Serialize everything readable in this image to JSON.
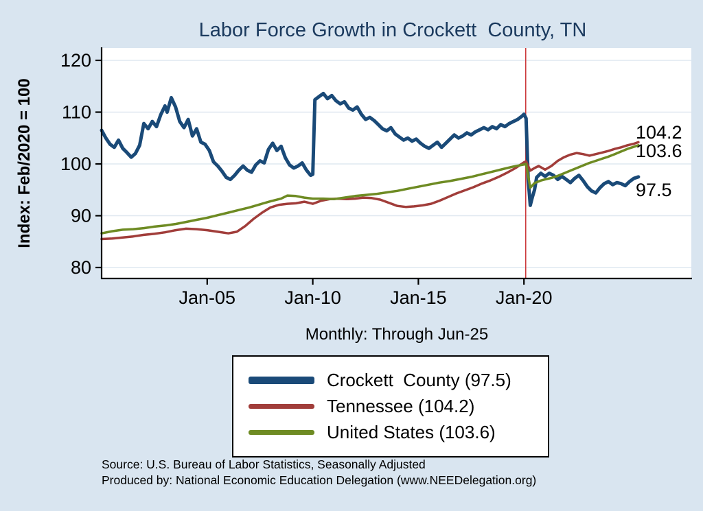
{
  "title": "Labor Force Growth in Crockett  County, TN",
  "y_axis_label": "Index: Feb/2020 = 100",
  "subtitle": "Monthly: Through Jun-25",
  "source_line1": "Source: U.S. Bureau of Labor Statistics, Seasonally Adjusted",
  "source_line2": "Produced by: National Economic Education Delegation (www.NEEDelegation.org)",
  "colors": {
    "background": "#d9e5f0",
    "title": "#1b3a5e",
    "grid": "#dfe8f0",
    "event_line": "#cc3a3c",
    "crockett": "#1a4a78",
    "tennessee": "#a13d3a",
    "united_states": "#6e8b23"
  },
  "chart_data": {
    "type": "line",
    "title": "Labor Force Growth in Crockett  County, TN",
    "xlabel": "",
    "ylabel": "Index: Feb/2020 = 100",
    "x_unit": "decimal_year",
    "x_range": [
      2000,
      2025.6
    ],
    "ylim": [
      78,
      122
    ],
    "grid": "horizontal",
    "legend_position": "below",
    "y_ticks": [
      80,
      90,
      100,
      110,
      120
    ],
    "x_ticks": [
      {
        "x": 2005,
        "label": "Jan-05"
      },
      {
        "x": 2010,
        "label": "Jan-10"
      },
      {
        "x": 2015,
        "label": "Jan-15"
      },
      {
        "x": 2020,
        "label": "Jan-20"
      }
    ],
    "event_line_x": 2020.083,
    "end_labels": [
      {
        "text": "104.2",
        "series": "Tennessee"
      },
      {
        "text": "103.6",
        "series": "United States"
      },
      {
        "text": "97.5",
        "series": "Crockett County"
      }
    ],
    "series": [
      {
        "name": "Crockett  County",
        "legend_label": "Crockett  County (97.5)",
        "last_value": 97.5,
        "color": "#1a4a78",
        "width": 5,
        "points": [
          [
            2000.0,
            106.5
          ],
          [
            2000.2,
            105.0
          ],
          [
            2000.4,
            103.8
          ],
          [
            2000.6,
            103.2
          ],
          [
            2000.8,
            104.6
          ],
          [
            2001.0,
            103.0
          ],
          [
            2001.2,
            102.2
          ],
          [
            2001.4,
            101.3
          ],
          [
            2001.6,
            102.0
          ],
          [
            2001.8,
            103.6
          ],
          [
            2002.0,
            107.8
          ],
          [
            2002.2,
            106.8
          ],
          [
            2002.4,
            108.2
          ],
          [
            2002.6,
            107.2
          ],
          [
            2002.8,
            109.5
          ],
          [
            2003.0,
            111.2
          ],
          [
            2003.1,
            110.0
          ],
          [
            2003.3,
            112.8
          ],
          [
            2003.5,
            111.0
          ],
          [
            2003.7,
            108.2
          ],
          [
            2003.9,
            107.0
          ],
          [
            2004.1,
            108.6
          ],
          [
            2004.3,
            105.4
          ],
          [
            2004.5,
            106.8
          ],
          [
            2004.7,
            104.2
          ],
          [
            2004.9,
            103.8
          ],
          [
            2005.1,
            102.6
          ],
          [
            2005.3,
            100.4
          ],
          [
            2005.5,
            99.6
          ],
          [
            2005.7,
            98.6
          ],
          [
            2005.9,
            97.4
          ],
          [
            2006.1,
            97.0
          ],
          [
            2006.3,
            97.8
          ],
          [
            2006.5,
            98.8
          ],
          [
            2006.7,
            99.6
          ],
          [
            2006.9,
            98.8
          ],
          [
            2007.1,
            98.4
          ],
          [
            2007.3,
            99.8
          ],
          [
            2007.5,
            100.6
          ],
          [
            2007.7,
            100.2
          ],
          [
            2007.9,
            102.8
          ],
          [
            2008.1,
            104.0
          ],
          [
            2008.3,
            102.6
          ],
          [
            2008.5,
            103.4
          ],
          [
            2008.7,
            101.2
          ],
          [
            2008.9,
            99.8
          ],
          [
            2009.1,
            99.2
          ],
          [
            2009.3,
            99.6
          ],
          [
            2009.5,
            100.2
          ],
          [
            2009.7,
            98.8
          ],
          [
            2009.9,
            97.8
          ],
          [
            2010.0,
            98.0
          ],
          [
            2010.1,
            112.4
          ],
          [
            2010.3,
            113.0
          ],
          [
            2010.5,
            113.6
          ],
          [
            2010.7,
            112.6
          ],
          [
            2010.9,
            113.2
          ],
          [
            2011.1,
            112.2
          ],
          [
            2011.3,
            111.6
          ],
          [
            2011.5,
            112.0
          ],
          [
            2011.7,
            110.8
          ],
          [
            2011.9,
            110.4
          ],
          [
            2012.1,
            111.0
          ],
          [
            2012.3,
            109.6
          ],
          [
            2012.5,
            108.6
          ],
          [
            2012.7,
            109.0
          ],
          [
            2012.9,
            108.4
          ],
          [
            2013.1,
            107.6
          ],
          [
            2013.3,
            106.8
          ],
          [
            2013.5,
            106.4
          ],
          [
            2013.7,
            107.0
          ],
          [
            2013.9,
            105.8
          ],
          [
            2014.1,
            105.2
          ],
          [
            2014.3,
            104.6
          ],
          [
            2014.5,
            105.0
          ],
          [
            2014.7,
            104.4
          ],
          [
            2014.9,
            104.8
          ],
          [
            2015.1,
            104.0
          ],
          [
            2015.3,
            103.4
          ],
          [
            2015.5,
            103.0
          ],
          [
            2015.7,
            103.6
          ],
          [
            2015.9,
            104.2
          ],
          [
            2016.1,
            103.2
          ],
          [
            2016.3,
            104.0
          ],
          [
            2016.5,
            104.8
          ],
          [
            2016.7,
            105.6
          ],
          [
            2016.9,
            105.0
          ],
          [
            2017.1,
            105.4
          ],
          [
            2017.3,
            106.0
          ],
          [
            2017.5,
            105.6
          ],
          [
            2017.7,
            106.2
          ],
          [
            2017.9,
            106.6
          ],
          [
            2018.1,
            107.0
          ],
          [
            2018.3,
            106.6
          ],
          [
            2018.5,
            107.2
          ],
          [
            2018.7,
            106.8
          ],
          [
            2018.9,
            107.6
          ],
          [
            2019.1,
            107.2
          ],
          [
            2019.3,
            107.8
          ],
          [
            2019.5,
            108.2
          ],
          [
            2019.7,
            108.6
          ],
          [
            2019.9,
            109.2
          ],
          [
            2020.0,
            109.6
          ],
          [
            2020.1,
            108.8
          ],
          [
            2020.2,
            97.0
          ],
          [
            2020.3,
            92.0
          ],
          [
            2020.4,
            93.6
          ],
          [
            2020.5,
            95.0
          ],
          [
            2020.6,
            97.4
          ],
          [
            2020.8,
            98.2
          ],
          [
            2021.0,
            97.6
          ],
          [
            2021.2,
            98.2
          ],
          [
            2021.4,
            97.8
          ],
          [
            2021.6,
            97.0
          ],
          [
            2021.8,
            97.6
          ],
          [
            2022.0,
            97.0
          ],
          [
            2022.2,
            96.4
          ],
          [
            2022.4,
            97.2
          ],
          [
            2022.6,
            97.8
          ],
          [
            2022.8,
            96.8
          ],
          [
            2023.0,
            95.6
          ],
          [
            2023.2,
            94.8
          ],
          [
            2023.4,
            94.4
          ],
          [
            2023.6,
            95.4
          ],
          [
            2023.8,
            96.2
          ],
          [
            2024.0,
            96.6
          ],
          [
            2024.2,
            96.0
          ],
          [
            2024.4,
            96.4
          ],
          [
            2024.6,
            96.2
          ],
          [
            2024.8,
            95.8
          ],
          [
            2025.0,
            96.6
          ],
          [
            2025.2,
            97.2
          ],
          [
            2025.42,
            97.5
          ]
        ]
      },
      {
        "name": "Tennessee",
        "legend_label": "Tennessee (104.2)",
        "last_value": 104.2,
        "color": "#a13d3a",
        "width": 3.5,
        "points": [
          [
            2000.0,
            85.5
          ],
          [
            2000.5,
            85.6
          ],
          [
            2001.0,
            85.8
          ],
          [
            2001.5,
            86.0
          ],
          [
            2002.0,
            86.3
          ],
          [
            2002.5,
            86.5
          ],
          [
            2003.0,
            86.8
          ],
          [
            2003.5,
            87.2
          ],
          [
            2004.0,
            87.5
          ],
          [
            2004.5,
            87.4
          ],
          [
            2005.0,
            87.2
          ],
          [
            2005.5,
            86.9
          ],
          [
            2006.0,
            86.6
          ],
          [
            2006.4,
            86.9
          ],
          [
            2006.8,
            88.0
          ],
          [
            2007.2,
            89.4
          ],
          [
            2007.6,
            90.6
          ],
          [
            2008.0,
            91.6
          ],
          [
            2008.4,
            92.1
          ],
          [
            2008.8,
            92.3
          ],
          [
            2009.2,
            92.4
          ],
          [
            2009.6,
            92.7
          ],
          [
            2010.0,
            92.3
          ],
          [
            2010.4,
            92.9
          ],
          [
            2010.8,
            93.2
          ],
          [
            2011.2,
            93.3
          ],
          [
            2011.6,
            93.2
          ],
          [
            2012.0,
            93.3
          ],
          [
            2012.4,
            93.5
          ],
          [
            2012.8,
            93.4
          ],
          [
            2013.2,
            93.1
          ],
          [
            2013.6,
            92.5
          ],
          [
            2014.0,
            91.9
          ],
          [
            2014.4,
            91.7
          ],
          [
            2014.8,
            91.8
          ],
          [
            2015.2,
            92.0
          ],
          [
            2015.6,
            92.3
          ],
          [
            2016.0,
            92.9
          ],
          [
            2016.4,
            93.6
          ],
          [
            2016.8,
            94.3
          ],
          [
            2017.2,
            94.9
          ],
          [
            2017.6,
            95.5
          ],
          [
            2018.0,
            96.2
          ],
          [
            2018.4,
            96.8
          ],
          [
            2018.8,
            97.5
          ],
          [
            2019.2,
            98.3
          ],
          [
            2019.6,
            99.2
          ],
          [
            2020.0,
            100.3
          ],
          [
            2020.1,
            100.5
          ],
          [
            2020.3,
            98.7
          ],
          [
            2020.5,
            99.2
          ],
          [
            2020.7,
            99.6
          ],
          [
            2021.0,
            98.9
          ],
          [
            2021.3,
            99.6
          ],
          [
            2021.6,
            100.6
          ],
          [
            2021.9,
            101.3
          ],
          [
            2022.2,
            101.8
          ],
          [
            2022.5,
            102.1
          ],
          [
            2022.8,
            101.9
          ],
          [
            2023.1,
            101.6
          ],
          [
            2023.4,
            101.9
          ],
          [
            2023.7,
            102.2
          ],
          [
            2024.0,
            102.5
          ],
          [
            2024.3,
            102.9
          ],
          [
            2024.6,
            103.2
          ],
          [
            2024.9,
            103.6
          ],
          [
            2025.2,
            103.9
          ],
          [
            2025.42,
            104.2
          ]
        ]
      },
      {
        "name": "United States",
        "legend_label": "United States (103.6)",
        "last_value": 103.6,
        "color": "#6e8b23",
        "width": 3.5,
        "points": [
          [
            2000.0,
            86.6
          ],
          [
            2000.5,
            87.0
          ],
          [
            2001.0,
            87.3
          ],
          [
            2001.5,
            87.4
          ],
          [
            2002.0,
            87.6
          ],
          [
            2002.5,
            87.9
          ],
          [
            2003.0,
            88.1
          ],
          [
            2003.5,
            88.4
          ],
          [
            2004.0,
            88.8
          ],
          [
            2004.5,
            89.2
          ],
          [
            2005.0,
            89.6
          ],
          [
            2005.5,
            90.1
          ],
          [
            2006.0,
            90.6
          ],
          [
            2006.5,
            91.1
          ],
          [
            2007.0,
            91.6
          ],
          [
            2007.5,
            92.2
          ],
          [
            2008.0,
            92.8
          ],
          [
            2008.5,
            93.3
          ],
          [
            2008.8,
            93.9
          ],
          [
            2009.2,
            93.8
          ],
          [
            2009.6,
            93.5
          ],
          [
            2010.0,
            93.3
          ],
          [
            2010.5,
            93.3
          ],
          [
            2011.0,
            93.2
          ],
          [
            2011.5,
            93.5
          ],
          [
            2012.0,
            93.8
          ],
          [
            2012.5,
            94.0
          ],
          [
            2013.0,
            94.2
          ],
          [
            2013.5,
            94.5
          ],
          [
            2014.0,
            94.8
          ],
          [
            2014.5,
            95.2
          ],
          [
            2015.0,
            95.6
          ],
          [
            2015.5,
            96.0
          ],
          [
            2016.0,
            96.4
          ],
          [
            2016.5,
            96.7
          ],
          [
            2017.0,
            97.1
          ],
          [
            2017.5,
            97.5
          ],
          [
            2018.0,
            98.0
          ],
          [
            2018.5,
            98.5
          ],
          [
            2019.0,
            99.0
          ],
          [
            2019.5,
            99.5
          ],
          [
            2020.0,
            99.9
          ],
          [
            2020.1,
            100.0
          ],
          [
            2020.3,
            95.4
          ],
          [
            2020.5,
            96.3
          ],
          [
            2020.8,
            96.8
          ],
          [
            2021.0,
            97.0
          ],
          [
            2021.3,
            97.3
          ],
          [
            2021.6,
            97.7
          ],
          [
            2021.9,
            98.2
          ],
          [
            2022.2,
            98.7
          ],
          [
            2022.5,
            99.2
          ],
          [
            2022.8,
            99.7
          ],
          [
            2023.1,
            100.2
          ],
          [
            2023.4,
            100.6
          ],
          [
            2023.7,
            101.0
          ],
          [
            2024.0,
            101.4
          ],
          [
            2024.3,
            101.9
          ],
          [
            2024.6,
            102.4
          ],
          [
            2024.9,
            102.9
          ],
          [
            2025.2,
            103.3
          ],
          [
            2025.42,
            103.6
          ]
        ]
      }
    ]
  }
}
